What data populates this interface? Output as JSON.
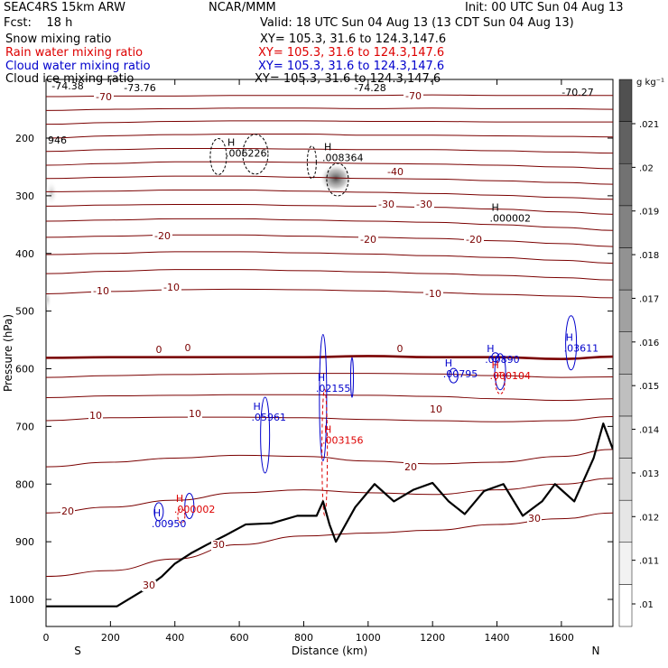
{
  "header": {
    "model": "SEAC4RS 15km ARW",
    "org": "NCAR/MMM",
    "init": "Init: 00 UTC Sun 04 Aug 13",
    "fcst": "Fcst:    18 h",
    "valid": "Valid: 18 UTC Sun 04 Aug 13 (13 CDT Sun 04 Aug 13)",
    "fields": [
      {
        "name": "Snow mixing ratio",
        "xy": "XY= 105.3, 31.6 to 124.3,147.6",
        "color": "#000000"
      },
      {
        "name": "Rain water mixing ratio",
        "xy": "XY= 105.3, 31.6 to 124.3,147.6",
        "color": "#dd0000"
      },
      {
        "name": "Cloud water mixing ratio",
        "xy": "XY= 105.3, 31.6 to 124.3,147.6",
        "color": "#0000cc"
      },
      {
        "name": "Cloud ice mixing ratio",
        "xy": "XY= 105.3, 31.6 to 124.3,147.6",
        "color": "#000000"
      }
    ]
  },
  "chart_data": {
    "type": "line",
    "title": "",
    "xlabel": "Distance (km)",
    "ylabel": "Pressure (hPa)",
    "xlim": [
      0,
      1760
    ],
    "ylim": [
      1050,
      100
    ],
    "x_ticks": [
      0,
      200,
      400,
      600,
      800,
      1000,
      1200,
      1400,
      1600
    ],
    "y_ticks": [
      200,
      300,
      400,
      500,
      600,
      700,
      800,
      900,
      1000
    ],
    "end_labels": {
      "left": "S",
      "right": "N"
    },
    "y_scale": "linear",
    "temperature_contours_label_values": [
      "-70",
      "-40",
      "-30",
      "-20",
      "-10",
      "0",
      "10",
      "20",
      "30"
    ],
    "temperature_contours": [
      {
        "level": -70,
        "x": [
          0,
          200,
          400,
          600,
          800,
          1000,
          1200,
          1400,
          1600,
          1760
        ],
        "y": [
          128,
          127,
          127,
          126,
          126,
          126,
          125,
          126,
          126,
          126
        ]
      },
      {
        "level": -65,
        "x": [
          0,
          200,
          400,
          600,
          800,
          1000,
          1200,
          1400,
          1600,
          1760
        ],
        "y": [
          152,
          150,
          149,
          148,
          148,
          149,
          148,
          149,
          149,
          150
        ]
      },
      {
        "level": -60,
        "x": [
          0,
          200,
          400,
          600,
          800,
          1000,
          1200,
          1400,
          1600,
          1760
        ],
        "y": [
          176,
          173,
          171,
          170,
          170,
          171,
          171,
          172,
          172,
          172
        ]
      },
      {
        "level": -55,
        "x": [
          0,
          200,
          400,
          600,
          800,
          1000,
          1200,
          1400,
          1600,
          1760
        ],
        "y": [
          200,
          196,
          194,
          193,
          193,
          195,
          195,
          196,
          197,
          198
        ]
      },
      {
        "level": -50,
        "x": [
          0,
          200,
          400,
          600,
          800,
          1000,
          1200,
          1400,
          1600,
          1760
        ],
        "y": [
          223,
          220,
          218,
          218,
          219,
          220,
          220,
          222,
          224,
          226
        ]
      },
      {
        "level": -45,
        "x": [
          0,
          200,
          400,
          600,
          800,
          1000,
          1200,
          1400,
          1600,
          1760
        ],
        "y": [
          247,
          244,
          241,
          241,
          242,
          244,
          245,
          247,
          250,
          253
        ]
      },
      {
        "level": -40,
        "x": [
          0,
          200,
          400,
          600,
          800,
          1000,
          1200,
          1400,
          1600,
          1760
        ],
        "y": [
          270,
          268,
          266,
          266,
          268,
          270,
          271,
          274,
          277,
          280
        ]
      },
      {
        "level": -35,
        "x": [
          0,
          200,
          400,
          600,
          800,
          1000,
          1200,
          1400,
          1600,
          1760
        ],
        "y": [
          293,
          292,
          290,
          290,
          292,
          294,
          296,
          299,
          303,
          306
        ]
      },
      {
        "level": -30,
        "x": [
          0,
          200,
          400,
          600,
          800,
          1000,
          1200,
          1400,
          1600,
          1760
        ],
        "y": [
          318,
          316,
          315,
          315,
          317,
          318,
          320,
          323,
          328,
          332
        ]
      },
      {
        "level": -25,
        "x": [
          0,
          200,
          400,
          600,
          800,
          1000,
          1200,
          1400,
          1600,
          1760
        ],
        "y": [
          344,
          342,
          340,
          340,
          342,
          344,
          346,
          350,
          355,
          360
        ]
      },
      {
        "level": -20,
        "x": [
          0,
          200,
          400,
          600,
          800,
          1000,
          1200,
          1400,
          1600,
          1760
        ],
        "y": [
          372,
          370,
          368,
          368,
          370,
          372,
          374,
          378,
          383,
          388
        ]
      },
      {
        "level": -15,
        "x": [
          0,
          200,
          400,
          600,
          800,
          1000,
          1200,
          1400,
          1600,
          1760
        ],
        "y": [
          402,
          400,
          397,
          397,
          399,
          401,
          404,
          407,
          412,
          417
        ]
      },
      {
        "level": -10,
        "x": [
          0,
          200,
          400,
          600,
          800,
          1000,
          1200,
          1400,
          1600,
          1760
        ],
        "y": [
          435,
          431,
          428,
          428,
          430,
          432,
          435,
          438,
          442,
          446
        ]
      },
      {
        "level": -5,
        "x": [
          0,
          200,
          400,
          600,
          800,
          1000,
          1200,
          1400,
          1600,
          1760
        ],
        "y": [
          470,
          466,
          463,
          462,
          463,
          465,
          468,
          471,
          474,
          477
        ]
      },
      {
        "level": 0,
        "x": [
          0,
          200,
          400,
          600,
          800,
          1000,
          1200,
          1400,
          1600,
          1760
        ],
        "y": [
          581,
          580,
          580,
          580,
          580,
          578,
          580,
          580,
          583,
          579
        ]
      },
      {
        "level": 5,
        "x": [
          0,
          200,
          400,
          600,
          800,
          1000,
          1200,
          1400,
          1600,
          1760
        ],
        "y": [
          615,
          612,
          610,
          609,
          608,
          608,
          609,
          612,
          615,
          614
        ]
      },
      {
        "level": 10,
        "x": [
          0,
          200,
          400,
          600,
          800,
          1000,
          1200,
          1400,
          1600,
          1760
        ],
        "y": [
          650,
          647,
          646,
          645,
          645,
          646,
          648,
          652,
          655,
          652
        ]
      },
      {
        "level": 15,
        "x": [
          0,
          200,
          400,
          600,
          800,
          1000,
          1200,
          1400,
          1600,
          1760
        ],
        "y": [
          690,
          685,
          684,
          684,
          685,
          688,
          690,
          692,
          690,
          683
        ]
      },
      {
        "level": 20,
        "x": [
          0,
          200,
          400,
          600,
          800,
          1000,
          1200,
          1400,
          1600,
          1760
        ],
        "y": [
          770,
          762,
          755,
          750,
          752,
          760,
          765,
          762,
          752,
          740
        ]
      },
      {
        "level": 25,
        "x": [
          0,
          200,
          400,
          600,
          800,
          1000,
          1200,
          1400,
          1600,
          1760
        ],
        "y": [
          850,
          840,
          828,
          815,
          810,
          815,
          818,
          810,
          800,
          790
        ]
      },
      {
        "level": 30,
        "x": [
          0,
          200,
          400,
          600,
          800,
          1000,
          1200,
          1400,
          1600,
          1760
        ],
        "y": [
          960,
          950,
          930,
          905,
          890,
          885,
          880,
          870,
          860,
          850
        ]
      }
    ],
    "terrain": {
      "name": "surface",
      "x": [
        0,
        220,
        300,
        360,
        400,
        450,
        500,
        560,
        620,
        700,
        780,
        840,
        860,
        880,
        900,
        960,
        1020,
        1080,
        1140,
        1200,
        1250,
        1300,
        1360,
        1420,
        1480,
        1540,
        1580,
        1640,
        1700,
        1730,
        1760
      ],
      "y": [
        1012,
        1012,
        985,
        960,
        938,
        920,
        905,
        888,
        870,
        868,
        855,
        855,
        830,
        870,
        900,
        840,
        800,
        830,
        810,
        798,
        830,
        852,
        812,
        800,
        855,
        830,
        800,
        830,
        755,
        695,
        740
      ]
    },
    "annotations": {
      "temperature_labels": [
        "-74.38",
        "-73.76",
        "-74.28",
        "-70.27",
        "-70",
        "-70",
        "-40",
        "-30",
        "-30",
        "-20",
        "-20",
        "-20",
        "-10",
        "-10",
        "-10",
        "0",
        "0",
        "0",
        "10",
        "10",
        "10",
        "20",
        "20",
        "30",
        "30",
        "30"
      ],
      "max_markers": [
        {
          "x": 580,
          "y": 232,
          "label": "H",
          "value": ".006226",
          "color": "#000000"
        },
        {
          "x": 880,
          "y": 240,
          "label": "H",
          "value": ".008364",
          "color": "#000000"
        },
        {
          "x": 1400,
          "y": 345,
          "label": "H",
          "value": ".000002",
          "color": "#000000"
        },
        {
          "x": 1630,
          "y": 570,
          "label": "H",
          "value": ".03611",
          "color": "#0000cc"
        },
        {
          "x": 1385,
          "y": 590,
          "label": "H",
          "value": ".00890",
          "color": "#0000cc"
        },
        {
          "x": 1400,
          "y": 618,
          "label": "H",
          "value": ".000104",
          "color": "#dd0000"
        },
        {
          "x": 1255,
          "y": 615,
          "label": "H",
          "value": ".00795",
          "color": "#0000cc"
        },
        {
          "x": 860,
          "y": 640,
          "label": "H",
          "value": ".02155",
          "color": "#0000cc"
        },
        {
          "x": 660,
          "y": 690,
          "label": "H",
          "value": ".05961",
          "color": "#0000cc"
        },
        {
          "x": 880,
          "y": 730,
          "label": "H",
          "value": ".003156",
          "color": "#dd0000"
        },
        {
          "x": 420,
          "y": 850,
          "label": "H",
          "value": ".000002",
          "color": "#dd0000"
        },
        {
          "x": 350,
          "y": 875,
          "label": "H",
          "value": ".00950",
          "color": "#0000cc"
        }
      ]
    },
    "colorbar": {
      "unit": "g kg⁻¹",
      "ticks": [
        ".021",
        ".02",
        ".019",
        ".018",
        ".017",
        ".016",
        ".015",
        ".014",
        ".013",
        ".012",
        ".011",
        ".01"
      ],
      "range": [
        0.01,
        0.022
      ],
      "colors": [
        "#ffffff",
        "#f2f2f2",
        "#e6e6e6",
        "#dadada",
        "#cdcdcd",
        "#bfbfbf",
        "#b0b0b0",
        "#a1a1a1",
        "#929292",
        "#828282",
        "#727272",
        "#616161",
        "#505050"
      ]
    },
    "colors": {
      "temperature": "#7a0000",
      "zero_isotherm": "#7a0000",
      "cloud_water": "#0000cc",
      "rain_water": "#dd0000",
      "snow": "#000000",
      "terrain": "#000000"
    }
  }
}
